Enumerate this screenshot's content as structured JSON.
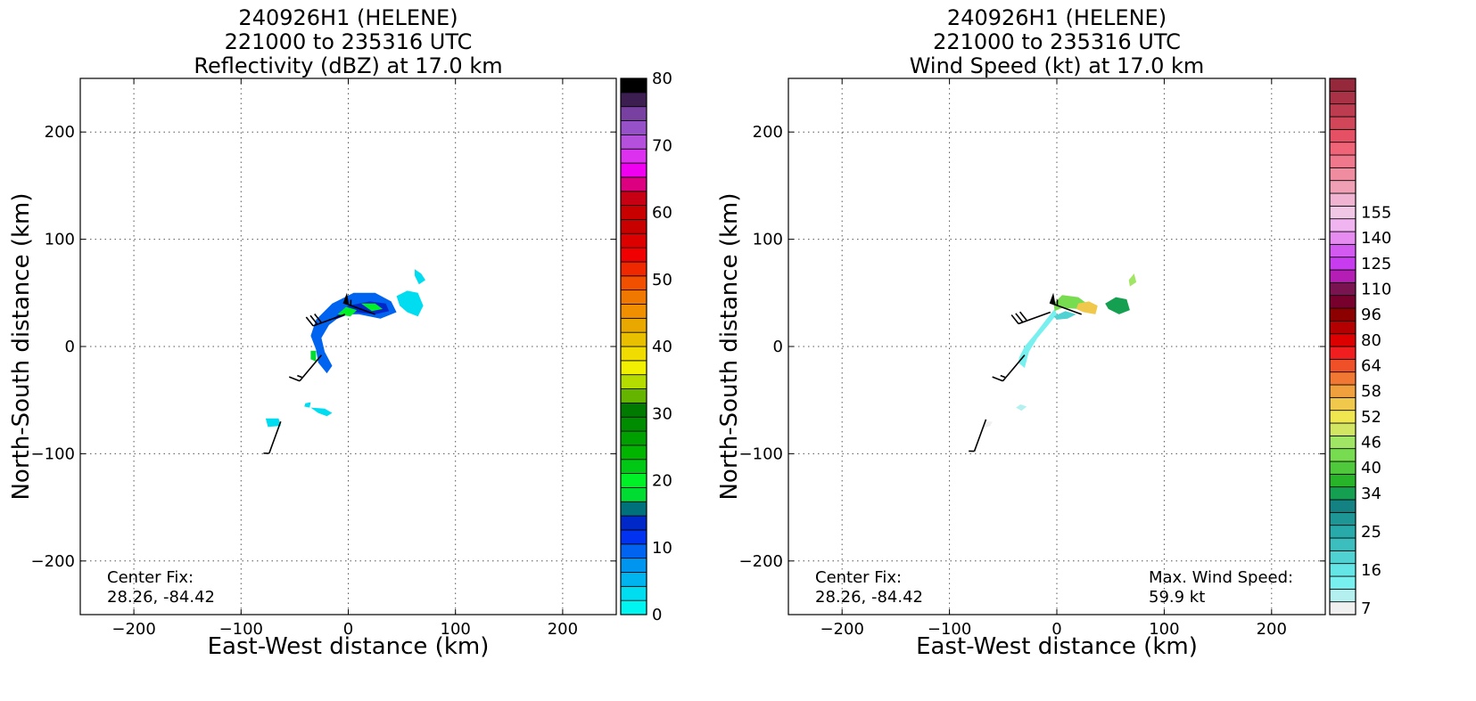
{
  "chart_data": [
    {
      "type": "heatmap",
      "title_lines": [
        "240926H1 (HELENE)",
        "221000 to 235316 UTC",
        "Reflectivity (dBZ) at 17.0 km"
      ],
      "xlabel": "East-West distance (km)",
      "ylabel": "North-South distance (km)",
      "xlim": [
        -250,
        250
      ],
      "ylim": [
        -250,
        250
      ],
      "xticks": [
        -200,
        -100,
        0,
        100,
        200
      ],
      "yticks": [
        -200,
        -100,
        0,
        100,
        200
      ],
      "grid": true,
      "colorbar": {
        "min": 0,
        "max": 80,
        "step": 2.5,
        "tick_values": [
          0,
          10,
          20,
          30,
          40,
          50,
          60,
          70,
          80
        ],
        "tick_labels": [
          "0",
          "10",
          "20",
          "30",
          "40",
          "50",
          "60",
          "70",
          "80"
        ],
        "colors": [
          "#00f5f0",
          "#00dcf0",
          "#00b4f0",
          "#0096f0",
          "#0064f0",
          "#0032f0",
          "#0028c8",
          "#00707a",
          "#00dc32",
          "#00f028",
          "#00c814",
          "#00b400",
          "#00a000",
          "#008c00",
          "#007a00",
          "#64b400",
          "#b4dc00",
          "#f0f000",
          "#f0dc00",
          "#e8c000",
          "#e8a800",
          "#f09000",
          "#f07800",
          "#f05000",
          "#f02800",
          "#f00000",
          "#dc0000",
          "#c80000",
          "#c80000",
          "#c80014",
          "#dc0080",
          "#f000f0",
          "#dc32f0",
          "#b450dc",
          "#9650c8",
          "#7840a0",
          "#3c1e50",
          "#000000"
        ]
      },
      "annotations": [
        {
          "lines": [
            "Center Fix:",
            "28.26, -84.42"
          ],
          "position": "bottom-left"
        }
      ],
      "data_regions": [
        {
          "value": 10,
          "points": [
            [
              -30,
              -3
            ],
            [
              -35,
              10
            ],
            [
              -30,
              25
            ],
            [
              -15,
              40
            ],
            [
              5,
              50
            ],
            [
              25,
              50
            ],
            [
              40,
              42
            ],
            [
              45,
              32
            ],
            [
              30,
              26
            ],
            [
              10,
              30
            ],
            [
              -5,
              30
            ],
            [
              -18,
              20
            ],
            [
              -25,
              8
            ],
            [
              -22,
              -5
            ],
            [
              -15,
              -18
            ],
            [
              -20,
              -25
            ],
            [
              -28,
              -15
            ]
          ]
        },
        {
          "value": 17,
          "points": [
            [
              -15,
              25
            ],
            [
              0,
              38
            ],
            [
              20,
              42
            ],
            [
              35,
              40
            ],
            [
              38,
              33
            ],
            [
              25,
              30
            ],
            [
              5,
              32
            ],
            [
              -10,
              26
            ]
          ]
        },
        {
          "value": 24,
          "points": [
            [
              -10,
              30
            ],
            [
              -2,
              37
            ],
            [
              8,
              34
            ],
            [
              2,
              28
            ]
          ]
        },
        {
          "value": 24,
          "points": [
            [
              12,
              40
            ],
            [
              25,
              40
            ],
            [
              32,
              35
            ],
            [
              22,
              33
            ]
          ]
        },
        {
          "value": 22,
          "points": [
            [
              -35,
              -12
            ],
            [
              -30,
              -14
            ],
            [
              -30,
              -4
            ],
            [
              -35,
              -4
            ]
          ]
        },
        {
          "value": 3,
          "points": [
            [
              45,
              47
            ],
            [
              55,
              52
            ],
            [
              65,
              50
            ],
            [
              70,
              38
            ],
            [
              65,
              28
            ],
            [
              55,
              32
            ],
            [
              48,
              38
            ]
          ]
        },
        {
          "value": 3,
          "points": [
            [
              62,
              72
            ],
            [
              68,
              68
            ],
            [
              72,
              62
            ],
            [
              66,
              58
            ],
            [
              62,
              66
            ]
          ]
        },
        {
          "value": 3,
          "points": [
            [
              -77,
              -67
            ],
            [
              -65,
              -67
            ],
            [
              -63,
              -74
            ],
            [
              -75,
              -75
            ]
          ]
        },
        {
          "value": 3,
          "points": [
            [
              -35,
              -57
            ],
            [
              -28,
              -62
            ],
            [
              -20,
              -65
            ],
            [
              -15,
              -62
            ],
            [
              -22,
              -58
            ]
          ]
        },
        {
          "value": 3,
          "points": [
            [
              -40,
              -53
            ],
            [
              -35,
              -52
            ],
            [
              -36,
              -57
            ],
            [
              -41,
              -56
            ]
          ]
        }
      ],
      "wind_barbs": [
        {
          "x": -63,
          "y": -70,
          "dir": 200,
          "speed": 5
        },
        {
          "x": -25,
          "y": -8,
          "dir": 220,
          "speed": 15
        },
        {
          "x": -3,
          "y": 30,
          "dir": 250,
          "speed": 30
        },
        {
          "x": 25,
          "y": 30,
          "dir": 290,
          "speed": 55
        }
      ]
    },
    {
      "type": "heatmap",
      "title_lines": [
        "240926H1 (HELENE)",
        "221000 to 235316 UTC",
        "Wind Speed (kt) at 17.0 km"
      ],
      "xlabel": "East-West distance (km)",
      "ylabel": "North-South distance (km)",
      "xlim": [
        -250,
        250
      ],
      "ylim": [
        -250,
        250
      ],
      "xticks": [
        -200,
        -100,
        0,
        100,
        200
      ],
      "yticks": [
        -200,
        -100,
        0,
        100,
        200
      ],
      "grid": true,
      "colorbar": {
        "tick_labels": [
          "7",
          "16",
          "25",
          "34",
          "40",
          "46",
          "52",
          "58",
          "64",
          "80",
          "96",
          "110",
          "125",
          "140",
          "155"
        ],
        "tick_indices": [
          0,
          3,
          6,
          9,
          11,
          13,
          15,
          17,
          19,
          21,
          23,
          25,
          27,
          29,
          31
        ],
        "colors": [
          "#f0f0f0",
          "#b4f0f0",
          "#78f0f0",
          "#64e6e6",
          "#50d2d2",
          "#3cbebe",
          "#28aaaa",
          "#1e9696",
          "#148282",
          "#14a050",
          "#28b428",
          "#50c83c",
          "#78dc50",
          "#a0e664",
          "#d2e664",
          "#f0e650",
          "#f0c84b",
          "#f0a03c",
          "#f07832",
          "#f05028",
          "#f01e1e",
          "#dc0000",
          "#b40000",
          "#8c0000",
          "#78002d",
          "#7a1450",
          "#b41eb4",
          "#c83cf0",
          "#d25af0",
          "#e68cf0",
          "#f0b4f0",
          "#f0c8e6",
          "#f0b4d2",
          "#f0a0b4",
          "#f08ca0",
          "#f0788c",
          "#f06478",
          "#e65064",
          "#d2465a",
          "#be3c50",
          "#aa3246",
          "#96283c"
        ]
      },
      "annotations": [
        {
          "lines": [
            "Center Fix:",
            "28.26, -84.42"
          ],
          "position": "bottom-left"
        },
        {
          "lines": [
            "Max. Wind Speed:",
            "59.9 kt"
          ],
          "position": "bottom-right"
        }
      ],
      "max_wind_speed_kt": 59.9,
      "data_regions": [
        {
          "value": 15,
          "points": [
            [
              -35,
              -10
            ],
            [
              -30,
              0
            ],
            [
              -20,
              12
            ],
            [
              -10,
              25
            ],
            [
              -2,
              35
            ],
            [
              0,
              30
            ],
            [
              -8,
              20
            ],
            [
              -18,
              8
            ],
            [
              -26,
              -5
            ],
            [
              -30,
              -20
            ],
            [
              -36,
              -15
            ]
          ]
        },
        {
          "value": 44,
          "points": [
            [
              -3,
              40
            ],
            [
              5,
              48
            ],
            [
              20,
              46
            ],
            [
              28,
              40
            ],
            [
              20,
              35
            ],
            [
              5,
              36
            ],
            [
              -2,
              33
            ]
          ]
        },
        {
          "value": 56,
          "points": [
            [
              20,
              40
            ],
            [
              30,
              42
            ],
            [
              38,
              38
            ],
            [
              36,
              30
            ],
            [
              25,
              32
            ],
            [
              18,
              35
            ]
          ]
        },
        {
          "value": 36,
          "points": [
            [
              45,
              40
            ],
            [
              55,
              46
            ],
            [
              65,
              44
            ],
            [
              68,
              34
            ],
            [
              58,
              30
            ],
            [
              48,
              35
            ]
          ]
        },
        {
          "value": 48,
          "points": [
            [
              67,
              62
            ],
            [
              72,
              68
            ],
            [
              74,
              60
            ],
            [
              68,
              56
            ]
          ]
        },
        {
          "value": 20,
          "points": [
            [
              -3,
              28
            ],
            [
              8,
              33
            ],
            [
              18,
              30
            ],
            [
              10,
              26
            ],
            [
              0,
              25
            ]
          ]
        },
        {
          "value": 9,
          "points": [
            [
              -68,
              -76
            ],
            [
              -62,
              -74
            ],
            [
              -60,
              -70
            ],
            [
              -66,
              -70
            ]
          ]
        },
        {
          "value": 12,
          "points": [
            [
              -38,
              -57
            ],
            [
              -33,
              -60
            ],
            [
              -28,
              -56
            ],
            [
              -34,
              -54
            ]
          ]
        }
      ],
      "wind_barbs": [
        {
          "x": -66,
          "y": -68,
          "dir": 200,
          "speed": 5
        },
        {
          "x": -30,
          "y": -8,
          "dir": 220,
          "speed": 15
        },
        {
          "x": -6,
          "y": 32,
          "dir": 250,
          "speed": 30
        },
        {
          "x": 23,
          "y": 30,
          "dir": 290,
          "speed": 55
        }
      ]
    }
  ]
}
